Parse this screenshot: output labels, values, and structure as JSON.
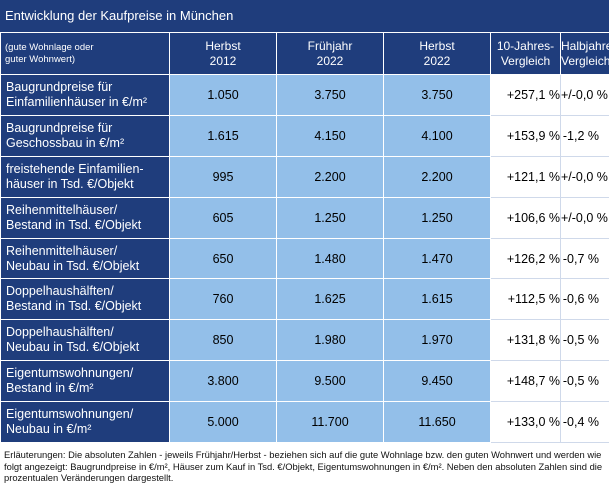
{
  "title": "Entwicklung der Kaufpreise in München",
  "header": {
    "first": [
      "(gute Wohnlage oder",
      "guter Wohnwert)"
    ],
    "columns": [
      [
        "Herbst",
        "2012"
      ],
      [
        "Frühjahr",
        "2022"
      ],
      [
        "Herbst",
        "2022"
      ],
      [
        "10-Jahres-",
        "Vergleich"
      ],
      [
        "Halbjahres-",
        "Vergleich"
      ]
    ]
  },
  "rows": [
    {
      "label": [
        "Baugrundpreise für",
        "Einfamilienhäuser in €/m²"
      ],
      "h2012": "1.050",
      "f2022": "3.750",
      "h2022": "3.750",
      "ten": "+257,1 %",
      "half": "+/-0,0 %"
    },
    {
      "label": [
        "Baugrundpreise für",
        "Geschossbau in €/m²"
      ],
      "h2012": "1.615",
      "f2022": "4.150",
      "h2022": "4.100",
      "ten": "+153,9 %",
      "half": "-1,2 %"
    },
    {
      "label": [
        "freistehende Einfamilien-",
        "häuser in Tsd. €/Objekt"
      ],
      "h2012": "995",
      "f2022": "2.200",
      "h2022": "2.200",
      "ten": "+121,1 %",
      "half": "+/-0,0 %"
    },
    {
      "label": [
        "Reihenmittelhäuser/",
        "Bestand in Tsd. €/Objekt"
      ],
      "h2012": "605",
      "f2022": "1.250",
      "h2022": "1.250",
      "ten": "+106,6 %",
      "half": "+/-0,0 %"
    },
    {
      "label": [
        "Reihenmittelhäuser/",
        "Neubau in Tsd. €/Objekt"
      ],
      "h2012": "650",
      "f2022": "1.480",
      "h2022": "1.470",
      "ten": "+126,2 %",
      "half": "-0,7 %"
    },
    {
      "label": [
        "Doppelhaushälften/",
        "Bestand in Tsd. €/Objekt"
      ],
      "h2012": "760",
      "f2022": "1.625",
      "h2022": "1.615",
      "ten": "+112,5 %",
      "half": "-0,6 %"
    },
    {
      "label": [
        "Doppelhaushälften/",
        "Neubau in Tsd. €/Objekt"
      ],
      "h2012": "850",
      "f2022": "1.980",
      "h2022": "1.970",
      "ten": "+131,8 %",
      "half": "-0,5 %"
    },
    {
      "label": [
        "Eigentumswohnungen/",
        "Bestand in €/m²"
      ],
      "h2012": "3.800",
      "f2022": "9.500",
      "h2022": "9.450",
      "ten": "+148,7 %",
      "half": "-0,5 %"
    },
    {
      "label": [
        "Eigentumswohnungen/",
        "Neubau in €/m²"
      ],
      "h2012": "5.000",
      "f2022": "11.700",
      "h2022": "11.650",
      "ten": "+133,0 %",
      "half": "-0,4 %"
    }
  ],
  "footnote": "Erläuterungen: Die absoluten Zahlen - jeweils Frühjahr/Herbst - beziehen sich auf die gute Wohnlage bzw. den guten Wohnwert und werden wie folgt angezeigt: Baugrundpreise in €/m², Häuser zum Kauf in Tsd. €/Objekt, Eigentumswohnungen in €/m². Neben den absoluten Zahlen sind die prozentualen Veränderungen dargestellt."
}
